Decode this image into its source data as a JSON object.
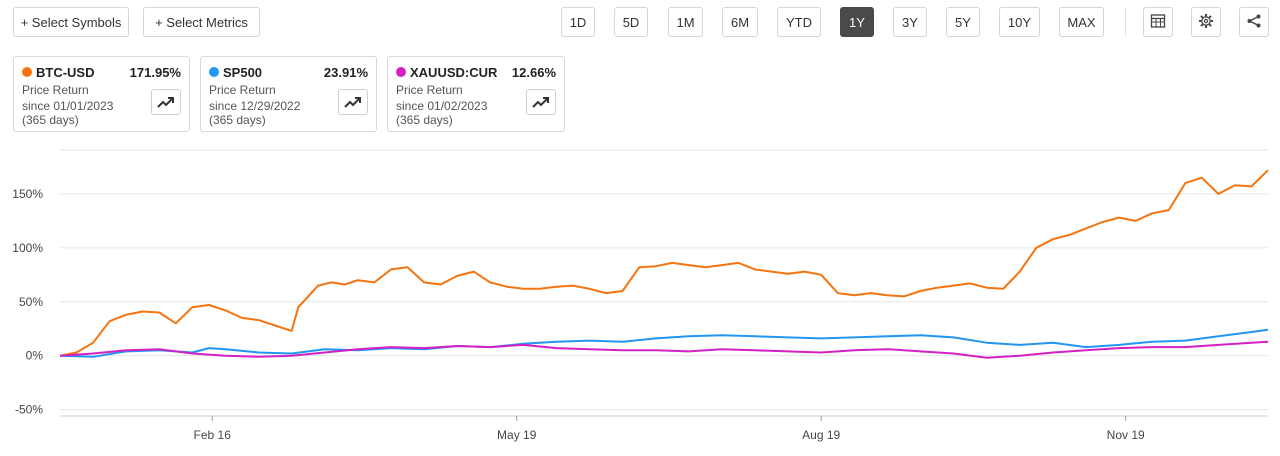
{
  "toolbar": {
    "select_symbols": "+ Select Symbols",
    "select_metrics": "+ Select Metrics",
    "ranges": [
      "1D",
      "5D",
      "1M",
      "6M",
      "YTD",
      "1Y",
      "3Y",
      "5Y",
      "10Y",
      "MAX"
    ],
    "active_range": "1Y",
    "icons": [
      "table-icon",
      "settings-icon",
      "share-icon"
    ]
  },
  "cards": [
    {
      "symbol": "BTC-USD",
      "value": "171.95%",
      "metric": "Price Return",
      "since": "since 01/01/2023",
      "days": "(365 days)",
      "color": "#F5740F"
    },
    {
      "symbol": "SP500",
      "value": "23.91%",
      "metric": "Price Return",
      "since": "since 12/29/2022",
      "days": "(365 days)",
      "color": "#2196F3"
    },
    {
      "symbol": "XAUUSD:CUR",
      "value": "12.66%",
      "metric": "Price Return",
      "since": "since 01/02/2023",
      "days": "(365 days)",
      "color": "#D321C4"
    }
  ],
  "chart_data": {
    "type": "line",
    "y_unit": "%",
    "ylim": [
      -55,
      200
    ],
    "yticks": [
      -50,
      0,
      50,
      100,
      150
    ],
    "ytick_labels": [
      "-50%",
      "0%",
      "50%",
      "100%",
      "150%"
    ],
    "xlim": [
      0,
      365
    ],
    "xticks": [
      46,
      138,
      230,
      322
    ],
    "xtick_labels": [
      "Feb 16",
      "May 19",
      "Aug 19",
      "Nov 19"
    ],
    "grid": true,
    "series": [
      {
        "name": "BTC-USD",
        "color": "#F5740F",
        "x": [
          0,
          5,
          10,
          15,
          20,
          25,
          30,
          35,
          40,
          45,
          50,
          55,
          60,
          65,
          70,
          72,
          75,
          78,
          82,
          86,
          90,
          95,
          100,
          105,
          110,
          115,
          120,
          125,
          130,
          135,
          140,
          145,
          150,
          155,
          160,
          165,
          170,
          175,
          180,
          185,
          190,
          195,
          200,
          205,
          210,
          215,
          220,
          225,
          230,
          235,
          240,
          245,
          250,
          255,
          260,
          265,
          270,
          275,
          280,
          285,
          290,
          295,
          300,
          305,
          310,
          315,
          320,
          325,
          330,
          335,
          340,
          345,
          350,
          355,
          360,
          365
        ],
        "values": [
          0,
          3,
          12,
          32,
          38,
          41,
          40,
          30,
          45,
          47,
          42,
          35,
          33,
          28,
          23,
          45,
          55,
          65,
          68,
          66,
          70,
          68,
          80,
          82,
          68,
          66,
          74,
          78,
          68,
          64,
          62,
          62,
          64,
          65,
          62,
          58,
          60,
          82,
          83,
          86,
          84,
          82,
          84,
          86,
          80,
          78,
          76,
          78,
          75,
          58,
          56,
          58,
          56,
          55,
          60,
          63,
          65,
          67,
          63,
          62,
          78,
          100,
          108,
          112,
          118,
          124,
          128,
          125,
          132,
          135,
          160,
          165,
          150,
          158,
          157,
          172
        ]
      },
      {
        "name": "SP500",
        "color": "#2196F3",
        "x": [
          0,
          10,
          20,
          30,
          40,
          45,
          50,
          60,
          70,
          80,
          90,
          100,
          110,
          120,
          130,
          140,
          150,
          160,
          170,
          180,
          190,
          200,
          210,
          220,
          230,
          240,
          250,
          260,
          270,
          280,
          290,
          300,
          310,
          320,
          330,
          340,
          350,
          360,
          365
        ],
        "values": [
          0,
          -1,
          4,
          5,
          3,
          7,
          6,
          3,
          2,
          6,
          5,
          7,
          6,
          9,
          8,
          11,
          13,
          14,
          13,
          16,
          18,
          19,
          18,
          17,
          16,
          17,
          18,
          19,
          17,
          12,
          10,
          12,
          8,
          10,
          13,
          14,
          18,
          22,
          24
        ]
      },
      {
        "name": "XAUUSD:CUR",
        "color": "#D321C4",
        "x": [
          0,
          10,
          20,
          30,
          40,
          45,
          50,
          60,
          70,
          80,
          90,
          100,
          110,
          120,
          130,
          140,
          150,
          160,
          170,
          180,
          190,
          200,
          210,
          220,
          230,
          240,
          250,
          260,
          270,
          280,
          290,
          300,
          310,
          320,
          330,
          340,
          350,
          360,
          365
        ],
        "values": [
          0,
          2,
          5,
          6,
          2,
          1,
          0,
          -1,
          0,
          3,
          6,
          8,
          7,
          9,
          8,
          10,
          7,
          6,
          5,
          5,
          4,
          6,
          5,
          4,
          3,
          5,
          6,
          4,
          2,
          -2,
          0,
          3,
          5,
          7,
          8,
          8,
          10,
          12,
          13
        ]
      }
    ]
  }
}
